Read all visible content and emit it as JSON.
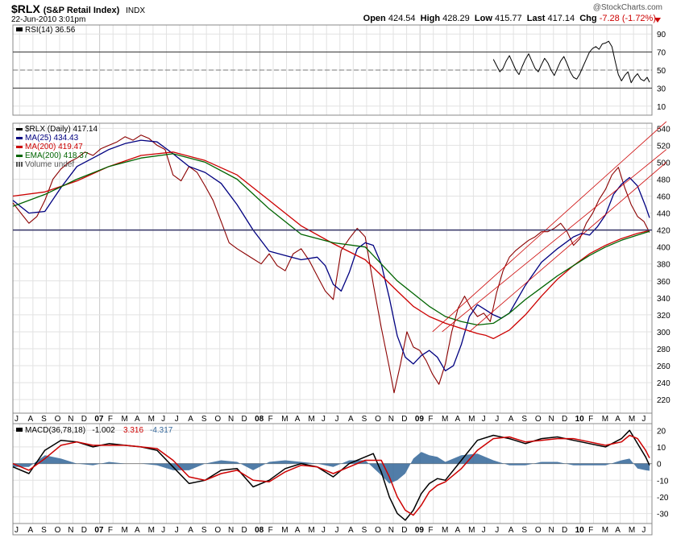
{
  "header": {
    "symbol": "$RLX",
    "name": "(S&P Retail Index)",
    "exchange": "INDX",
    "datetime": "22-Jun-2010 3:01pm",
    "source": "@StockCharts.com",
    "open_label": "Open",
    "open": "424.54",
    "high_label": "High",
    "high": "428.29",
    "low_label": "Low",
    "low": "415.77",
    "last_label": "Last",
    "last": "417.14",
    "chg_label": "Chg",
    "chg": "-7.28 (-1.72%)",
    "colors": {
      "down": "#cc0000"
    }
  },
  "chart_data": [
    {
      "type": "line",
      "panel": "rsi",
      "legend": [
        {
          "text": "RSI(14) 36.56",
          "color": "#000000"
        }
      ],
      "ylim": [
        0,
        100
      ],
      "yticks": [
        10,
        30,
        50,
        70,
        90
      ],
      "reference_lines": [
        30,
        50,
        70
      ],
      "series": [
        {
          "name": "RSI(14)",
          "color": "#000000",
          "x": [
            2009.5,
            2009.52,
            2009.54,
            2009.56,
            2009.58,
            2009.6,
            2009.62,
            2009.64,
            2009.66,
            2009.68,
            2009.7,
            2009.72,
            2009.74,
            2009.76,
            2009.78,
            2009.8,
            2009.82,
            2009.84,
            2009.86,
            2009.88,
            2009.9,
            2009.92,
            2009.94,
            2009.96,
            2009.98,
            2010.0,
            2010.02,
            2010.04,
            2010.06,
            2010.08,
            2010.1,
            2010.12,
            2010.14,
            2010.16,
            2010.18,
            2010.2,
            2010.22,
            2010.24,
            2010.26,
            2010.28,
            2010.3,
            2010.32,
            2010.34,
            2010.36,
            2010.38,
            2010.4,
            2010.42,
            2010.44,
            2010.46,
            2010.475
          ],
          "values": [
            62,
            55,
            48,
            52,
            60,
            66,
            58,
            50,
            45,
            54,
            62,
            68,
            60,
            52,
            48,
            56,
            63,
            58,
            50,
            44,
            52,
            60,
            65,
            57,
            48,
            42,
            40,
            46,
            54,
            62,
            70,
            74,
            76,
            73,
            79,
            80,
            82,
            76,
            60,
            45,
            38,
            44,
            48,
            36,
            42,
            46,
            40,
            38,
            42,
            36.56
          ]
        }
      ]
    },
    {
      "type": "line",
      "panel": "price",
      "legend": [
        {
          "text": "$RLX (Daily) 417.14",
          "color": "#000000",
          "marker": "line"
        },
        {
          "text": "MA(25) 434.43",
          "color": "#000080",
          "marker": "line"
        },
        {
          "text": "MA(200) 419.47",
          "color": "#cc0000",
          "marker": "line"
        },
        {
          "text": "EMA(200) 418.37",
          "color": "#006400",
          "marker": "line"
        },
        {
          "text": "Volume undef",
          "color": "#555555",
          "marker": "bars"
        }
      ],
      "ylim": [
        204,
        546
      ],
      "yticks": [
        220,
        240,
        260,
        280,
        300,
        320,
        340,
        360,
        380,
        400,
        420,
        440,
        460,
        480,
        500,
        520,
        540
      ],
      "reference_line": 420,
      "x_axis": {
        "labels": [
          "J",
          "A",
          "S",
          "O",
          "N",
          "D",
          "07",
          "F",
          "M",
          "A",
          "M",
          "J",
          "J",
          "A",
          "S",
          "O",
          "N",
          "D",
          "08",
          "F",
          "M",
          "A",
          "M",
          "J",
          "J",
          "A",
          "S",
          "O",
          "N",
          "D",
          "09",
          "F",
          "M",
          "A",
          "M",
          "J",
          "J",
          "A",
          "S",
          "O",
          "N",
          "D",
          "10",
          "F",
          "M",
          "A",
          "M",
          "J"
        ],
        "first_tick": 2006.5,
        "step": 0.0833333,
        "year_labels": [
          "07",
          "08",
          "09",
          "10"
        ]
      },
      "series": [
        {
          "name": "$RLX (Daily)",
          "color": "#8b0000",
          "x": [
            2006.5,
            2006.55,
            2006.6,
            2006.65,
            2006.7,
            2006.75,
            2006.8,
            2006.85,
            2006.9,
            2006.95,
            2007.0,
            2007.05,
            2007.1,
            2007.15,
            2007.2,
            2007.25,
            2007.3,
            2007.35,
            2007.4,
            2007.45,
            2007.5,
            2007.55,
            2007.6,
            2007.65,
            2007.7,
            2007.75,
            2007.8,
            2007.85,
            2007.9,
            2007.95,
            2008.0,
            2008.05,
            2008.1,
            2008.15,
            2008.2,
            2008.25,
            2008.3,
            2008.35,
            2008.4,
            2008.45,
            2008.5,
            2008.55,
            2008.6,
            2008.65,
            2008.7,
            2008.75,
            2008.8,
            2008.85,
            2008.88,
            2008.92,
            2008.96,
            2009.0,
            2009.04,
            2009.08,
            2009.12,
            2009.16,
            2009.2,
            2009.24,
            2009.28,
            2009.32,
            2009.36,
            2009.4,
            2009.44,
            2009.48,
            2009.52,
            2009.56,
            2009.6,
            2009.64,
            2009.68,
            2009.72,
            2009.76,
            2009.8,
            2009.84,
            2009.88,
            2009.92,
            2009.96,
            2010.0,
            2010.04,
            2010.08,
            2010.12,
            2010.16,
            2010.2,
            2010.24,
            2010.28,
            2010.32,
            2010.36,
            2010.4,
            2010.44,
            2010.475
          ],
          "values": [
            452,
            440,
            428,
            436,
            455,
            480,
            492,
            500,
            505,
            512,
            508,
            516,
            520,
            524,
            530,
            526,
            532,
            528,
            520,
            515,
            485,
            478,
            495,
            488,
            472,
            455,
            430,
            405,
            398,
            392,
            386,
            380,
            392,
            378,
            372,
            392,
            398,
            384,
            366,
            348,
            338,
            396,
            410,
            422,
            412,
            356,
            305,
            258,
            228,
            262,
            300,
            282,
            278,
            266,
            250,
            238,
            262,
            300,
            328,
            342,
            328,
            318,
            322,
            312,
            346,
            372,
            388,
            396,
            402,
            408,
            412,
            418,
            418,
            422,
            428,
            418,
            402,
            410,
            428,
            440,
            456,
            468,
            485,
            494,
            470,
            450,
            436,
            430,
            417.14
          ]
        },
        {
          "name": "MA(25)",
          "color": "#000080",
          "x": [
            2006.5,
            2006.6,
            2006.7,
            2006.8,
            2006.9,
            2007.0,
            2007.1,
            2007.2,
            2007.3,
            2007.4,
            2007.5,
            2007.6,
            2007.7,
            2007.8,
            2007.9,
            2008.0,
            2008.1,
            2008.2,
            2008.3,
            2008.4,
            2008.45,
            2008.5,
            2008.55,
            2008.6,
            2008.65,
            2008.7,
            2008.75,
            2008.8,
            2008.85,
            2008.9,
            2008.95,
            2009.0,
            2009.05,
            2009.1,
            2009.15,
            2009.2,
            2009.25,
            2009.3,
            2009.35,
            2009.4,
            2009.45,
            2009.5,
            2009.55,
            2009.6,
            2009.7,
            2009.8,
            2009.9,
            2010.0,
            2010.05,
            2010.1,
            2010.15,
            2010.2,
            2010.25,
            2010.3,
            2010.35,
            2010.4,
            2010.45,
            2010.475
          ],
          "values": [
            455,
            440,
            442,
            470,
            495,
            505,
            515,
            522,
            526,
            524,
            510,
            495,
            488,
            475,
            450,
            420,
            395,
            390,
            385,
            388,
            378,
            356,
            348,
            370,
            398,
            405,
            402,
            380,
            340,
            295,
            270,
            262,
            272,
            278,
            270,
            254,
            260,
            285,
            318,
            332,
            326,
            320,
            316,
            322,
            355,
            382,
            398,
            412,
            416,
            414,
            424,
            438,
            462,
            474,
            482,
            472,
            448,
            434.43
          ]
        },
        {
          "name": "MA(200)",
          "color": "#cc0000",
          "x": [
            2006.5,
            2006.7,
            2006.9,
            2007.1,
            2007.3,
            2007.5,
            2007.7,
            2007.9,
            2008.1,
            2008.3,
            2008.5,
            2008.7,
            2008.9,
            2009.0,
            2009.1,
            2009.2,
            2009.3,
            2009.4,
            2009.45,
            2009.5,
            2009.6,
            2009.7,
            2009.8,
            2009.9,
            2010.0,
            2010.1,
            2010.2,
            2010.3,
            2010.4,
            2010.475
          ],
          "values": [
            460,
            465,
            478,
            495,
            508,
            512,
            502,
            485,
            455,
            425,
            404,
            385,
            348,
            330,
            318,
            310,
            304,
            298,
            296,
            292,
            302,
            320,
            342,
            362,
            378,
            392,
            402,
            410,
            416,
            419.47
          ]
        },
        {
          "name": "EMA(200)",
          "color": "#006400",
          "x": [
            2006.5,
            2006.7,
            2006.9,
            2007.1,
            2007.3,
            2007.5,
            2007.7,
            2007.9,
            2008.1,
            2008.3,
            2008.5,
            2008.7,
            2008.8,
            2008.9,
            2009.0,
            2009.1,
            2009.2,
            2009.3,
            2009.4,
            2009.5,
            2009.6,
            2009.7,
            2009.8,
            2009.9,
            2010.0,
            2010.1,
            2010.2,
            2010.3,
            2010.4,
            2010.475
          ],
          "values": [
            448,
            462,
            480,
            495,
            505,
            510,
            500,
            480,
            445,
            415,
            405,
            400,
            380,
            360,
            345,
            330,
            318,
            312,
            308,
            310,
            322,
            338,
            352,
            366,
            378,
            390,
            400,
            408,
            414,
            418.37
          ]
        },
        {
          "name": "upper channel line",
          "color": "#cc0000",
          "x": [
            2009.12,
            2010.58
          ],
          "values": [
            300,
            548
          ]
        },
        {
          "name": "middle channel line",
          "color": "#cc0000",
          "x": [
            2009.18,
            2010.58
          ],
          "values": [
            300,
            515
          ]
        },
        {
          "name": "lower channel line",
          "color": "#cc0000",
          "x": [
            2009.35,
            2010.58
          ],
          "values": [
            300,
            500
          ]
        }
      ]
    },
    {
      "type": "line",
      "panel": "macd",
      "legend": [
        {
          "text": "MACD(36,78,18)",
          "color": "#000000"
        },
        {
          "text": "-1.002",
          "color": "#000000"
        },
        {
          "text": "3.316",
          "color": "#cc0000"
        },
        {
          "text": "-4.317",
          "color": "#336699"
        }
      ],
      "ylim": [
        -36,
        24
      ],
      "yticks": [
        -30,
        -20,
        -10,
        0,
        10,
        20
      ],
      "series": [
        {
          "name": "MACD",
          "color": "#000000",
          "x": [
            2006.5,
            2006.6,
            2006.7,
            2006.8,
            2006.9,
            2007.0,
            2007.1,
            2007.2,
            2007.3,
            2007.4,
            2007.5,
            2007.6,
            2007.7,
            2007.8,
            2007.9,
            2008.0,
            2008.1,
            2008.2,
            2008.3,
            2008.4,
            2008.5,
            2008.6,
            2008.7,
            2008.75,
            2008.8,
            2008.85,
            2008.9,
            2008.95,
            2009.0,
            2009.05,
            2009.1,
            2009.15,
            2009.2,
            2009.3,
            2009.4,
            2009.5,
            2009.6,
            2009.7,
            2009.8,
            2009.9,
            2010.0,
            2010.1,
            2010.2,
            2010.3,
            2010.35,
            2010.4,
            2010.45,
            2010.475
          ],
          "values": [
            -2,
            -6,
            8,
            14,
            13,
            10,
            12,
            11,
            10,
            8,
            -2,
            -12,
            -10,
            -4,
            -3,
            -14,
            -10,
            -3,
            0,
            -2,
            -8,
            0,
            4,
            6,
            -5,
            -20,
            -30,
            -34,
            -28,
            -18,
            -12,
            -9,
            -10,
            2,
            14,
            17,
            15,
            12,
            15,
            16,
            14,
            12,
            10,
            15,
            20,
            12,
            4,
            -1.002
          ]
        },
        {
          "name": "Signal",
          "color": "#cc0000",
          "x": [
            2006.5,
            2006.6,
            2006.7,
            2006.8,
            2006.9,
            2007.0,
            2007.1,
            2007.2,
            2007.3,
            2007.4,
            2007.5,
            2007.6,
            2007.7,
            2007.8,
            2007.9,
            2008.0,
            2008.1,
            2008.2,
            2008.3,
            2008.4,
            2008.5,
            2008.6,
            2008.7,
            2008.8,
            2008.85,
            2008.9,
            2008.95,
            2009.0,
            2009.05,
            2009.1,
            2009.15,
            2009.2,
            2009.3,
            2009.4,
            2009.5,
            2009.6,
            2009.7,
            2009.8,
            2009.9,
            2010.0,
            2010.1,
            2010.2,
            2010.3,
            2010.35,
            2010.4,
            2010.45,
            2010.475
          ],
          "values": [
            0,
            -4,
            3,
            11,
            13,
            11,
            11,
            11,
            10,
            9,
            2,
            -8,
            -10,
            -6,
            -4,
            -10,
            -11,
            -5,
            -1,
            -2,
            -6,
            -2,
            2,
            2,
            -8,
            -20,
            -28,
            -31,
            -25,
            -17,
            -13,
            -11,
            -3,
            8,
            15,
            16,
            13,
            14,
            15,
            15,
            13,
            11,
            13,
            17,
            15,
            8,
            3.316
          ]
        },
        {
          "name": "Histogram",
          "color": "#336699",
          "type": "bar",
          "x": [
            2006.5,
            2006.6,
            2006.7,
            2006.8,
            2006.9,
            2007.0,
            2007.1,
            2007.2,
            2007.3,
            2007.4,
            2007.5,
            2007.6,
            2007.7,
            2007.8,
            2007.9,
            2008.0,
            2008.1,
            2008.2,
            2008.3,
            2008.4,
            2008.5,
            2008.6,
            2008.7,
            2008.8,
            2008.85,
            2008.9,
            2008.95,
            2009.0,
            2009.05,
            2009.1,
            2009.15,
            2009.2,
            2009.3,
            2009.4,
            2009.5,
            2009.6,
            2009.7,
            2009.8,
            2009.9,
            2010.0,
            2010.1,
            2010.2,
            2010.3,
            2010.35,
            2010.4,
            2010.45,
            2010.475
          ],
          "values": [
            -2,
            -2,
            5,
            3,
            0,
            -1,
            1,
            0,
            0,
            -1,
            -4,
            -4,
            0,
            2,
            1,
            -4,
            1,
            2,
            1,
            0,
            -2,
            2,
            2,
            -7,
            -12,
            -10,
            -6,
            3,
            7,
            5,
            4,
            1,
            5,
            6,
            2,
            -1,
            -1,
            1,
            1,
            -1,
            -1,
            -1,
            2,
            3,
            -3,
            -4,
            -4.317
          ]
        }
      ]
    }
  ]
}
